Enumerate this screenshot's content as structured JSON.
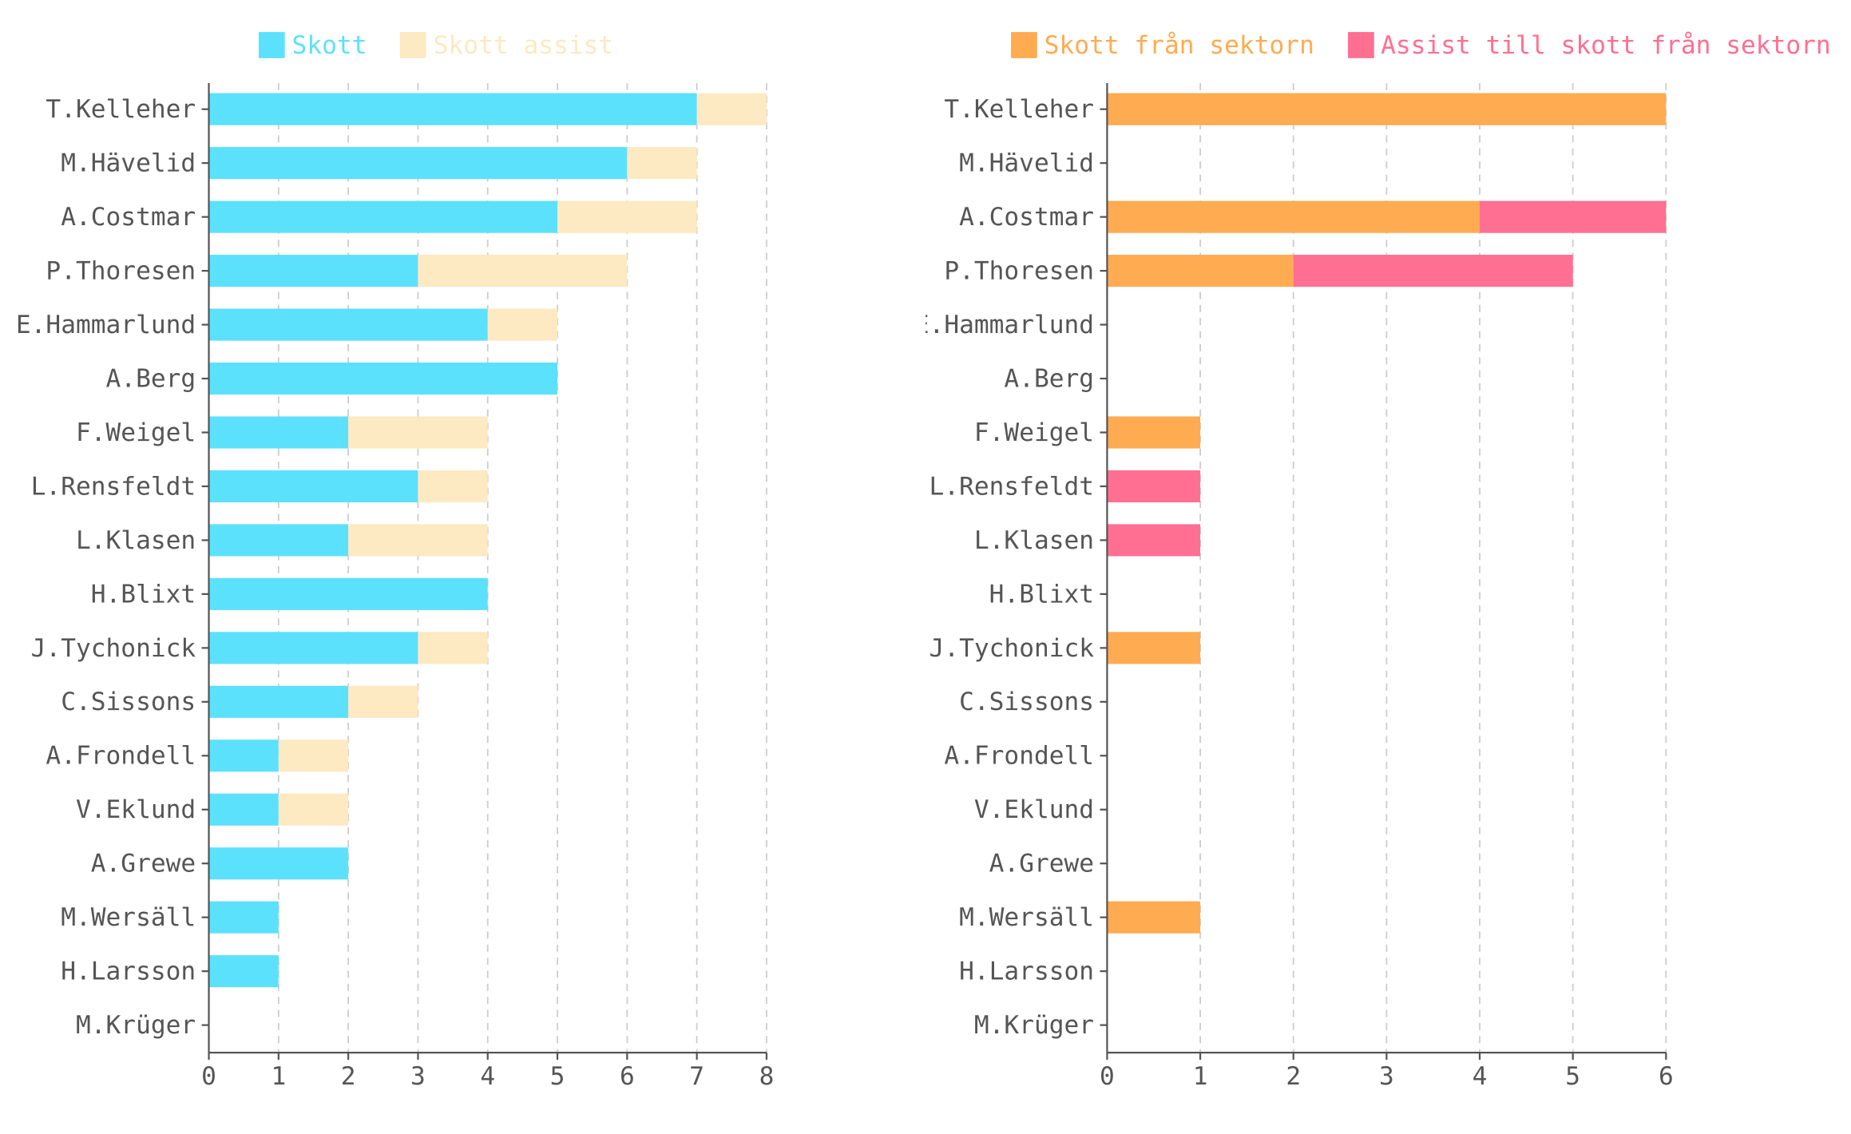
{
  "chart_data": [
    {
      "type": "bar",
      "orientation": "horizontal",
      "stacked": true,
      "categories": [
        "T.Kelleher",
        "M.Hävelid",
        "A.Costmar",
        "P.Thoresen",
        "E.Hammarlund",
        "A.Berg",
        "F.Weigel",
        "L.Rensfeldt",
        "L.Klasen",
        "H.Blixt",
        "J.Tychonick",
        "C.Sissons",
        "A.Frondell",
        "V.Eklund",
        "A.Grewe",
        "M.Wersäll",
        "H.Larsson",
        "M.Krüger"
      ],
      "series": [
        {
          "name": "Skott",
          "color": "#5ce1fd",
          "values": [
            7,
            6,
            5,
            3,
            4,
            5,
            2,
            3,
            2,
            4,
            3,
            2,
            1,
            1,
            2,
            1,
            1,
            0
          ]
        },
        {
          "name": "Skott assist",
          "color": "#fde9c2",
          "values": [
            1,
            1,
            2,
            3,
            1,
            0,
            2,
            1,
            2,
            0,
            1,
            1,
            1,
            1,
            0,
            0,
            0,
            0
          ]
        }
      ],
      "xlim": [
        0,
        8
      ],
      "xticks": [
        "0",
        "1",
        "2",
        "3",
        "4",
        "5",
        "6",
        "7",
        "8"
      ],
      "grid": "vertical-dashed",
      "legend_position": "top"
    },
    {
      "type": "bar",
      "orientation": "horizontal",
      "stacked": true,
      "categories": [
        "T.Kelleher",
        "M.Hävelid",
        "A.Costmar",
        "P.Thoresen",
        "E.Hammarlund",
        "A.Berg",
        "F.Weigel",
        "L.Rensfeldt",
        "L.Klasen",
        "H.Blixt",
        "J.Tychonick",
        "C.Sissons",
        "A.Frondell",
        "V.Eklund",
        "A.Grewe",
        "M.Wersäll",
        "H.Larsson",
        "M.Krüger"
      ],
      "series": [
        {
          "name": "Skott från sektorn",
          "color": "#ffab51",
          "values": [
            6,
            0,
            4,
            2,
            0,
            0,
            1,
            0,
            0,
            0,
            1,
            0,
            0,
            0,
            0,
            1,
            0,
            0
          ]
        },
        {
          "name": "Assist till skott från sektorn",
          "color": "#ff6f91",
          "values": [
            0,
            0,
            2,
            3,
            0,
            0,
            0,
            1,
            1,
            0,
            0,
            0,
            0,
            0,
            0,
            0,
            0,
            0
          ]
        }
      ],
      "xlim": [
        0,
        6
      ],
      "xticks": [
        "0",
        "1",
        "2",
        "3",
        "4",
        "5",
        "6"
      ],
      "grid": "vertical-dashed",
      "legend_position": "top"
    }
  ],
  "style": {
    "axis_color": "#555555",
    "grid_color": "#cccccc",
    "label_color": "#555555"
  }
}
